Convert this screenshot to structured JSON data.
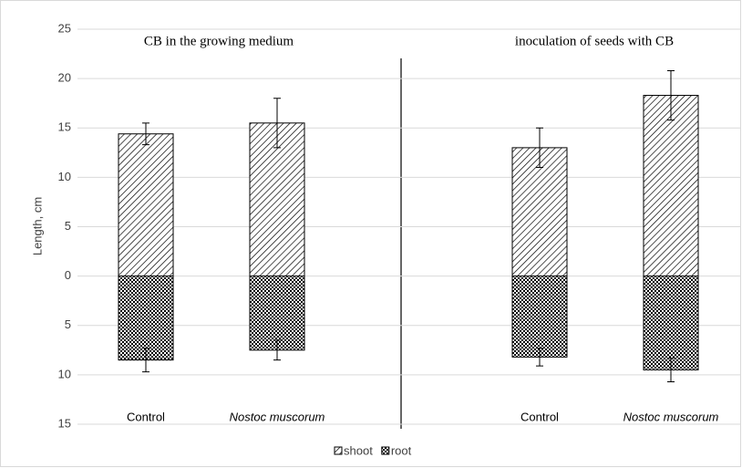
{
  "chart_data": {
    "type": "bar",
    "annotations": [
      "CB in the growing medium",
      "inoculation of seeds with CB"
    ],
    "y_label": "Length, cm",
    "categories": [
      "Control",
      "Nostoc muscorum",
      "Control",
      "Nostoc muscorum"
    ],
    "series": [
      {
        "name": "shoot",
        "color": "#000000",
        "pattern": "hatch",
        "values": [
          14.4,
          15.5,
          13.0,
          18.3
        ],
        "errors": [
          1.1,
          2.5,
          2.0,
          2.5
        ]
      },
      {
        "name": "root",
        "color": "#000000",
        "pattern": "check",
        "values": [
          -8.5,
          -7.5,
          -8.2,
          -9.5
        ],
        "errors": [
          1.2,
          1.0,
          0.9,
          1.2
        ]
      }
    ],
    "ylim": [
      -15,
      25
    ],
    "yticks": [
      {
        "value": -15,
        "label": "15"
      },
      {
        "value": -10,
        "label": "10"
      },
      {
        "value": -5,
        "label": "5"
      },
      0,
      5,
      10,
      15,
      20,
      25
    ],
    "grid": true,
    "legend": "bottom"
  }
}
